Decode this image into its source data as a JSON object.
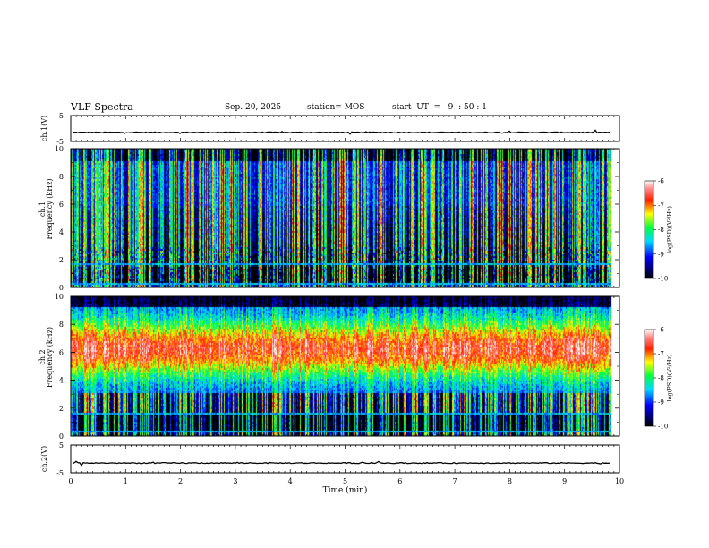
{
  "header": {
    "title": "VLF Spectra",
    "date": "Sep. 20, 2025",
    "station": "station= MOS",
    "start": "start  UT  =   9  : 50 : 1"
  },
  "chart_data": [
    {
      "type": "line",
      "panel": "ch1-waveform",
      "ylabel": "ch.1(V)",
      "ylim": [
        -5,
        5
      ],
      "yticks": [
        "5",
        "-5"
      ],
      "xlim": [
        0,
        10
      ],
      "trace_level": -1.5
    },
    {
      "type": "heatmap",
      "panel": "ch1-spectrogram",
      "ylabel_channel": "ch.1",
      "ylabel": "Frequency (kHz)",
      "ylim": [
        0,
        10
      ],
      "yticks": [
        "0",
        "2",
        "4",
        "6",
        "8",
        "10"
      ],
      "xlim": [
        0,
        10
      ],
      "data_end_min": 9.85,
      "colorbar": {
        "label": "log(PSD)(V²/Hz)",
        "range": [
          -10,
          -6
        ],
        "ticks": [
          "-6",
          "-7",
          "-8",
          "-9",
          "-10"
        ]
      }
    },
    {
      "type": "heatmap",
      "panel": "ch2-spectrogram",
      "ylabel_channel": "ch.2",
      "ylabel": "Frequency (kHz)",
      "ylim": [
        0,
        10
      ],
      "yticks": [
        "0",
        "2",
        "4",
        "6",
        "8",
        "10"
      ],
      "xlim": [
        0,
        10
      ],
      "data_end_min": 9.85,
      "colorbar": {
        "label": "log(PSD)(V²/Hz)",
        "range": [
          -10,
          -6
        ],
        "ticks": [
          "-6",
          "-7",
          "-8",
          "-9",
          "-10"
        ]
      }
    },
    {
      "type": "line",
      "panel": "ch2-waveform",
      "ylabel": "ch.2(V)",
      "ylim": [
        -5,
        5
      ],
      "yticks": [
        "5",
        "-5"
      ],
      "xlim": [
        0,
        10
      ],
      "trace_level": -1.5,
      "xlabel": "Time (min)",
      "xticks": [
        "0",
        "1",
        "2",
        "3",
        "4",
        "5",
        "6",
        "7",
        "8",
        "9",
        "10"
      ]
    }
  ]
}
